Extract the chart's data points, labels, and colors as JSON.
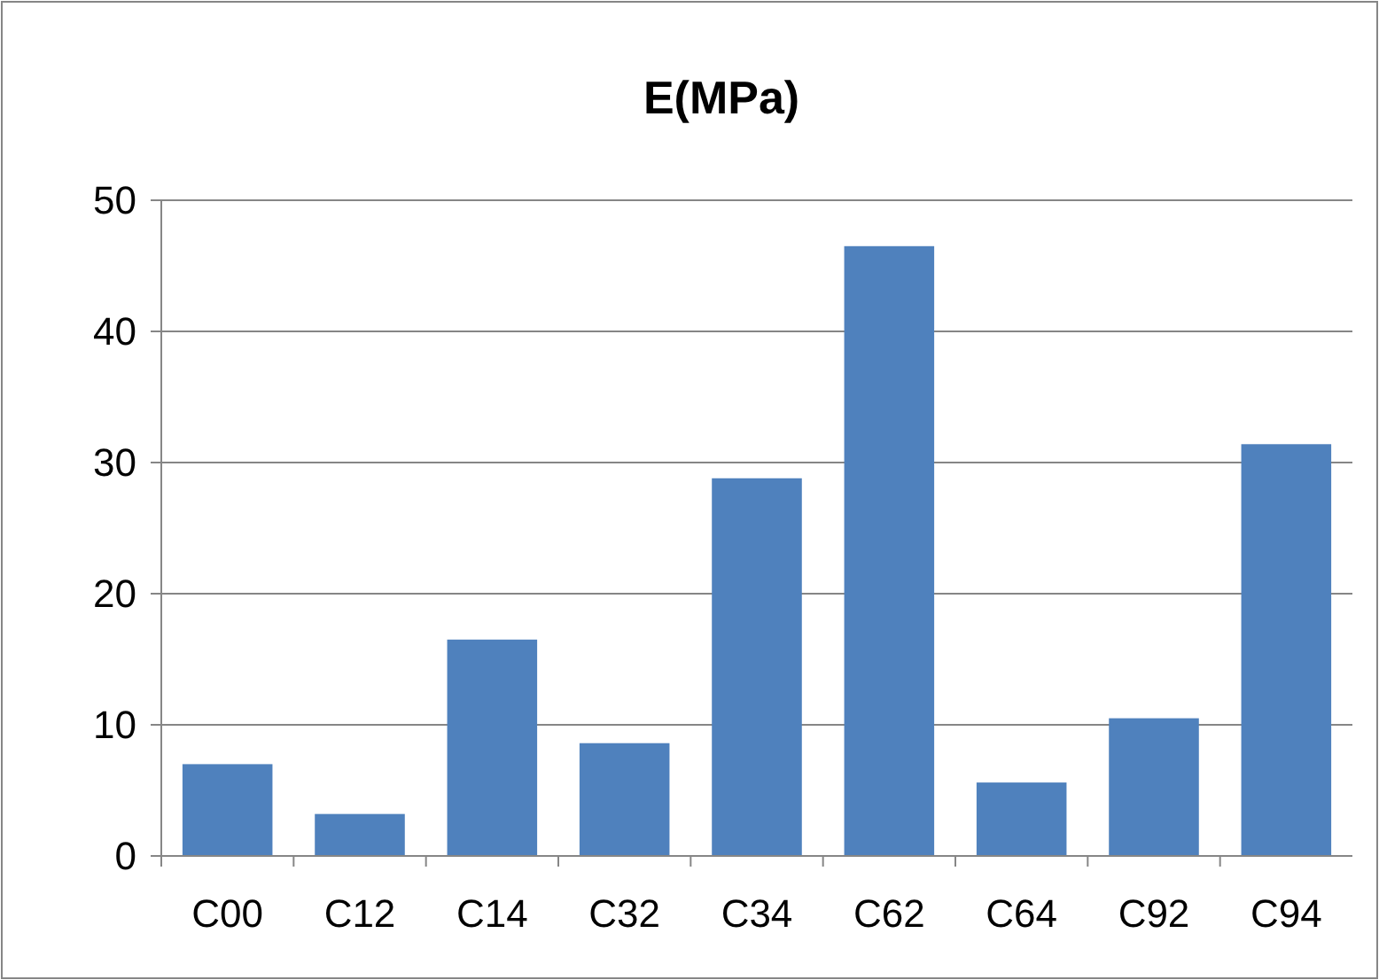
{
  "chart_data": {
    "type": "bar",
    "title": "E(MPa)",
    "categories": [
      "C00",
      "C12",
      "C14",
      "C32",
      "C34",
      "C62",
      "C64",
      "C92",
      "C94"
    ],
    "values": [
      7.0,
      3.2,
      16.5,
      8.6,
      28.8,
      46.5,
      5.6,
      10.5,
      31.4
    ],
    "color": "#4f81bd",
    "ylim": [
      0,
      50
    ],
    "yticks": [
      0,
      10,
      20,
      30,
      40,
      50
    ],
    "grid": "y"
  }
}
